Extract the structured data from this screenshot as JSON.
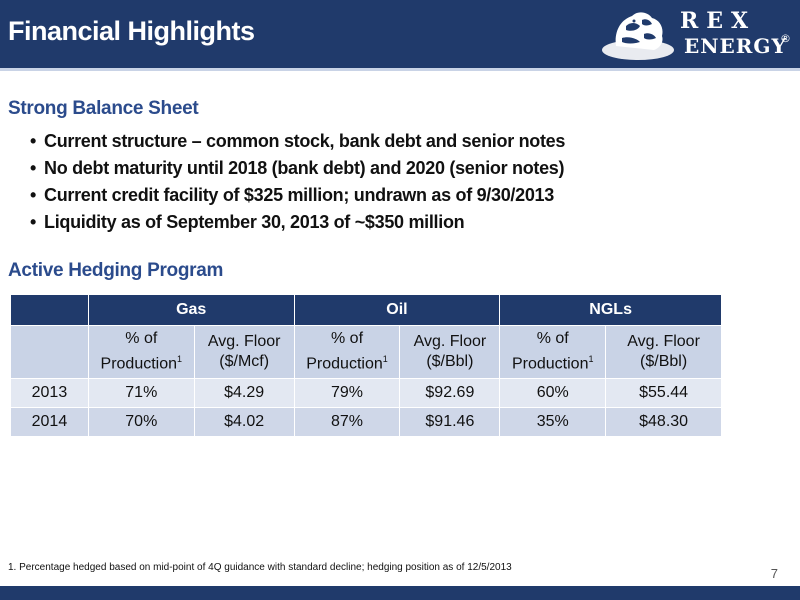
{
  "header": {
    "title": "Financial Highlights",
    "logo_text_top": "REX",
    "logo_text_bottom": "ENERGY",
    "logo_reg": "®"
  },
  "balance_sheet": {
    "heading": "Strong Balance Sheet",
    "bullets": [
      "Current structure – common stock, bank debt and senior notes",
      "No debt maturity until 2018 (bank debt) and 2020 (senior notes)",
      "Current credit facility of $325 million; undrawn as of 9/30/2013",
      "Liquidity as of September 30, 2013 of ~$350 million"
    ]
  },
  "hedging": {
    "heading": "Active Hedging Program",
    "groups": [
      "Gas",
      "Oil",
      "NGLs"
    ],
    "sub_headers": [
      {
        "line1": "% of",
        "line2": "Production",
        "sup": "1"
      },
      {
        "line1": "Avg. Floor",
        "line2": "($/Mcf)",
        "sup": ""
      },
      {
        "line1": "% of",
        "line2": "Production",
        "sup": "1"
      },
      {
        "line1": "Avg. Floor",
        "line2": "($/Bbl)",
        "sup": ""
      },
      {
        "line1": "% of",
        "line2": "Production",
        "sup": "1"
      },
      {
        "line1": "Avg. Floor",
        "line2": "($/Bbl)",
        "sup": ""
      }
    ],
    "rows": [
      {
        "year": "2013",
        "values": [
          "71%",
          "$4.29",
          "79%",
          "$92.69",
          "60%",
          "$55.44"
        ]
      },
      {
        "year": "2014",
        "values": [
          "70%",
          "$4.02",
          "87%",
          "$91.46",
          "35%",
          "$48.30"
        ]
      }
    ]
  },
  "footnote": "1. Percentage hedged based on mid-point of 4Q guidance with standard decline; hedging position as of 12/5/2013",
  "page_number": "7",
  "colors": {
    "header_bg": "#203a6b",
    "heading_text": "#2b4b8c",
    "subheader_bg": "#c9d3e6"
  }
}
